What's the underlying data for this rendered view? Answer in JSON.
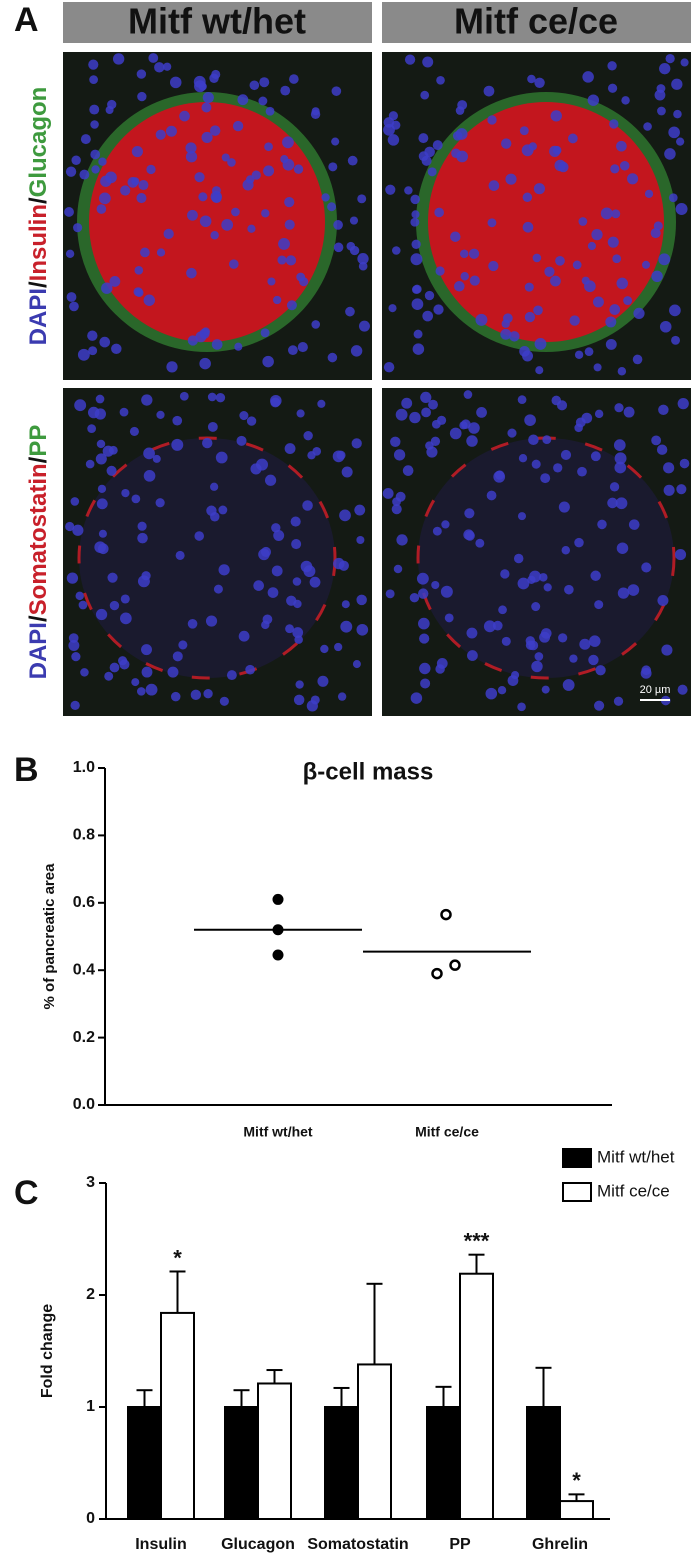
{
  "panels": {
    "label": "A",
    "column_headers": [
      "Mitf wt/het",
      "Mitf ce/ce"
    ],
    "row_labels": [
      {
        "parts": [
          {
            "text": "DAPI",
            "color": "#3b3bb0"
          },
          {
            "text": "/",
            "color": "#111111"
          },
          {
            "text": "Insulin",
            "color": "#c8202a"
          },
          {
            "text": "/",
            "color": "#111111"
          },
          {
            "text": "Glucagon",
            "color": "#3e9a3e"
          }
        ]
      },
      {
        "parts": [
          {
            "text": "DAPI",
            "color": "#3b3bb0"
          },
          {
            "text": "/",
            "color": "#111111"
          },
          {
            "text": "Somatostatin",
            "color": "#c8202a"
          },
          {
            "text": "/",
            "color": "#111111"
          },
          {
            "text": "PP",
            "color": "#3e9a3e"
          }
        ]
      }
    ],
    "scale_bar": "20 µm"
  },
  "chart_data": [
    {
      "type": "dot",
      "panel_label": "B",
      "title": "β-cell mass",
      "ylabel": "% of pancreatic area",
      "categories": [
        "Mitf wt/het",
        "Mitf ce/ce"
      ],
      "points": [
        [
          0.61,
          0.52,
          0.445
        ],
        [
          0.565,
          0.39,
          0.415
        ]
      ],
      "means": [
        0.52,
        0.455
      ],
      "markers": [
        "filled",
        "open"
      ],
      "ylim": [
        0,
        1
      ],
      "yticks": [
        {
          "value": 0,
          "label": "0.0"
        },
        0.2,
        0.4,
        0.6,
        0.8,
        {
          "value": 1,
          "label": "1.0"
        }
      ]
    },
    {
      "type": "bar",
      "panel_label": "C",
      "ylabel": "Fold change",
      "categories": [
        "Insulin",
        "Glucagon",
        "Somatostatin",
        "PP",
        "Ghrelin"
      ],
      "series": [
        {
          "name": "Mitf wt/het",
          "color": "#000000",
          "values": [
            1,
            1,
            1,
            1,
            1
          ],
          "errors": [
            0.15,
            0.15,
            0.17,
            0.18,
            0.35
          ],
          "annotations": [
            null,
            null,
            null,
            null,
            null
          ]
        },
        {
          "name": "Mitf ce/ce",
          "color": "#ffffff",
          "values": [
            1.84,
            1.21,
            1.38,
            2.19,
            0.16
          ],
          "errors": [
            0.37,
            0.12,
            0.72,
            0.17,
            0.06
          ],
          "annotations": [
            "*",
            null,
            null,
            "***",
            "*"
          ]
        }
      ],
      "ylim": [
        0,
        3
      ],
      "yticks": [
        0,
        1,
        2,
        3
      ],
      "legend": "top-right"
    }
  ]
}
